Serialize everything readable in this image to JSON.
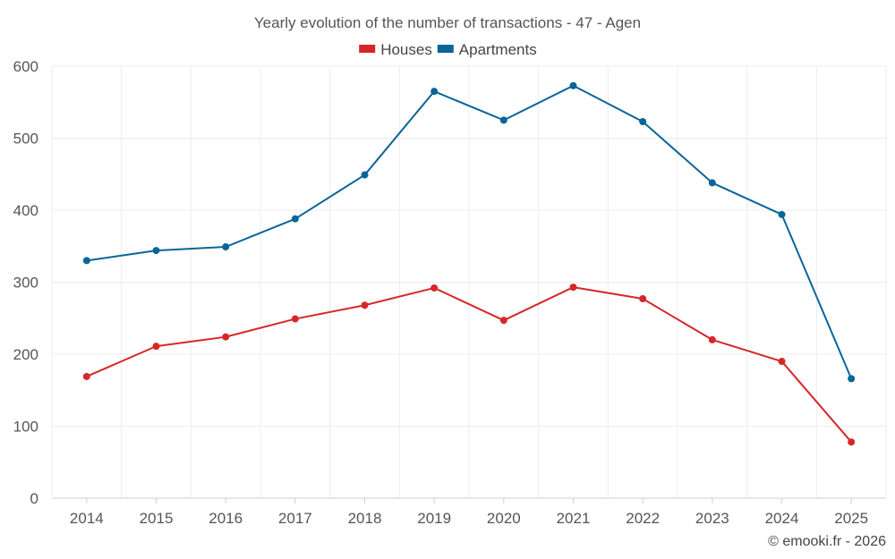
{
  "chart_data": {
    "type": "line",
    "title": "Yearly evolution of the number of transactions - 47 - Agen",
    "xlabel": "",
    "ylabel": "",
    "ylim": [
      0,
      600
    ],
    "yticks": [
      0,
      100,
      200,
      300,
      400,
      500,
      600
    ],
    "grid": true,
    "legend_position": "top-center",
    "categories": [
      "2014",
      "2015",
      "2016",
      "2017",
      "2018",
      "2019",
      "2020",
      "2021",
      "2022",
      "2023",
      "2024",
      "2025"
    ],
    "series": [
      {
        "name": "Houses",
        "color": "#d62728",
        "values": [
          169,
          211,
          224,
          249,
          268,
          292,
          247,
          293,
          277,
          220,
          190,
          78
        ]
      },
      {
        "name": "Apartments",
        "color": "#0a6599",
        "values": [
          330,
          344,
          349,
          388,
          449,
          565,
          525,
          573,
          523,
          438,
          394,
          166
        ]
      }
    ]
  },
  "credit": "© emooki.fr - 2026"
}
